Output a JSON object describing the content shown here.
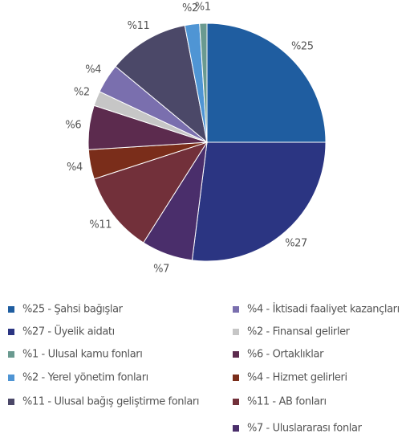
{
  "chart_data": {
    "type": "pie",
    "categories": [
      "%25 - Şahsi bağışlar",
      "%27 - Üyelik aidatı",
      "%7 - Uluslararası fonlar",
      "%11 - AB fonları",
      "%4 - Hizmet gelirleri",
      "%6 - Ortaklıklar",
      "%2 - Finansal gelirler",
      "%4 - İktisadi faaliyet kazançları",
      "%11 - Ulusal bağış geliştirme fonları",
      "%2 - Yerel yönetim fonları",
      "%1 - Ulusal kamu fonları"
    ],
    "values": [
      25,
      27,
      7,
      11,
      4,
      6,
      2,
      4,
      11,
      2,
      1
    ],
    "value_labels": [
      "%25",
      "%27",
      "%7",
      "%11",
      "%4",
      "%6",
      "%2",
      "%4",
      "%11",
      "%2",
      "%1"
    ],
    "colors": [
      "#1f5da0",
      "#2b3582",
      "#4a2e6b",
      "#72303a",
      "#7a2d1a",
      "#5c2b4e",
      "#c6c6c6",
      "#7a6fae",
      "#4b4868",
      "#4f95d4",
      "#6a9a90"
    ],
    "legend": "bottom"
  }
}
